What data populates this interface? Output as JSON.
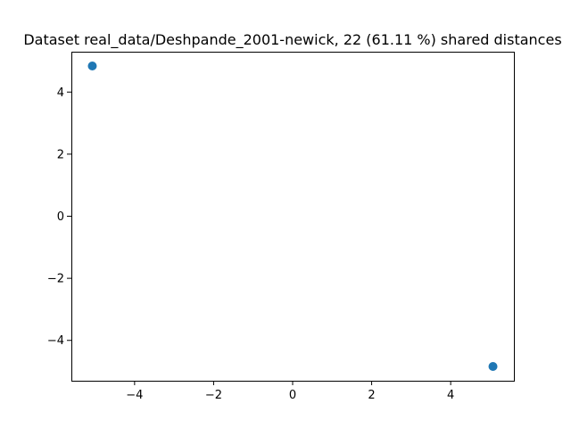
{
  "chart_data": {
    "type": "scatter",
    "title": "Dataset real_data/Deshpande_2001-newick, 22 (61.11 %) shared distances",
    "xlabel": "",
    "ylabel": "",
    "xlim": [
      -5.6,
      5.6
    ],
    "ylim": [
      -5.3,
      5.3
    ],
    "x_ticks": [
      -4,
      -2,
      0,
      2,
      4
    ],
    "x_tick_labels": [
      "−4",
      "−2",
      "0",
      "2",
      "4"
    ],
    "y_ticks": [
      -4,
      -2,
      0,
      2,
      4
    ],
    "y_tick_labels": [
      "−4",
      "−2",
      "0",
      "2",
      "4"
    ],
    "grid": false,
    "marker_color": "#1f77b4",
    "points": [
      {
        "x": -5.07,
        "y": 4.84
      },
      {
        "x": 5.07,
        "y": -4.84
      }
    ]
  }
}
